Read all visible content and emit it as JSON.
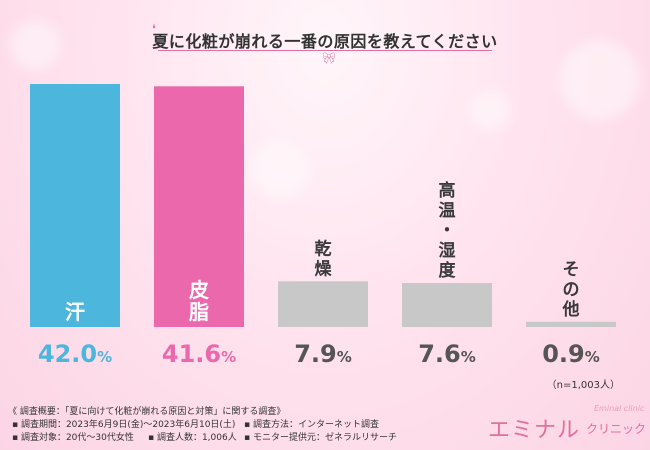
{
  "title": "夏に化粧が崩れる一番の原因を教えてください",
  "chart_data": {
    "type": "bar",
    "categories": [
      {
        "label": "汗",
        "value": 42.0,
        "pct_num": "42.0",
        "color": "#4db6dc",
        "text_color": "#4db6dc"
      },
      {
        "label": "皮脂",
        "value": 41.6,
        "pct_num": "41.6",
        "color": "#ea68ab",
        "text_color": "#ea68ab"
      },
      {
        "label": "乾燥",
        "value": 7.9,
        "pct_num": "7.9",
        "color": "#c8c8c8",
        "text_color": "#555555"
      },
      {
        "label": "高温・湿度",
        "value": 7.6,
        "pct_num": "7.6",
        "color": "#c8c8c8",
        "text_color": "#555555"
      },
      {
        "label": "その他",
        "value": 0.9,
        "pct_num": "0.9",
        "color": "#c8c8c8",
        "text_color": "#555555"
      }
    ],
    "pct_unit": "%",
    "ylim": [
      0,
      42.0
    ]
  },
  "sample_size": "（n=1,003人）",
  "survey": {
    "overview": "《 調査概要：「夏に向けて化粧が崩れる原因と対策」に関する調査》",
    "period": "▪ 調査期間：2023年6月9日(金)〜2023年6月10日(土)",
    "method": "▪ 調査方法：インターネット調査",
    "target": "▪ 調査対象：20代〜30代女性",
    "count": "▪ 調査人数：1,006人",
    "provider": "▪ モニター提供元：ゼネラルリサーチ"
  },
  "logo": {
    "main": "エミナル",
    "sub": "クリニック",
    "en": "Eminal clinic"
  }
}
